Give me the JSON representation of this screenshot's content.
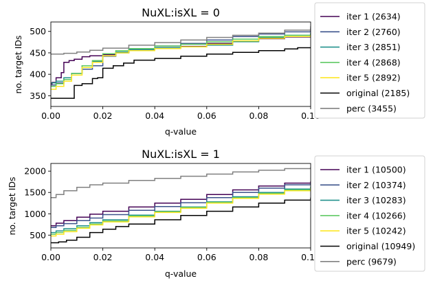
{
  "chart_data": [
    {
      "type": "line",
      "title": "NuXL:isXL = 0",
      "xlabel": "q-value",
      "ylabel": "no. target IDs",
      "xlim": [
        0,
        0.1
      ],
      "ylim": [
        325,
        522
      ],
      "xticks": [
        0,
        0.02,
        0.04,
        0.06,
        0.08,
        0.1
      ],
      "xtick_labels": [
        "0.00",
        "0.02",
        "0.04",
        "0.06",
        "0.08",
        "0.10"
      ],
      "yticks": [
        350,
        400,
        450,
        500
      ],
      "ytick_labels": [
        "350",
        "400",
        "450",
        "500"
      ],
      "legend_position": "right",
      "series": [
        {
          "name": "iter 1 (2634)",
          "color": "#440154",
          "x": [
            0,
            0.0005,
            0.002,
            0.004,
            0.005,
            0.007,
            0.009,
            0.012,
            0.015,
            0.02,
            0.025,
            0.03,
            0.04,
            0.05,
            0.06,
            0.07,
            0.08,
            0.09,
            0.1
          ],
          "y": [
            378,
            381,
            392,
            404,
            428,
            432,
            435,
            441,
            443,
            446,
            451,
            458,
            462,
            465,
            472,
            477,
            483,
            487,
            495
          ]
        },
        {
          "name": "iter 2 (2760)",
          "color": "#3b528b",
          "x": [
            0,
            0.002,
            0.005,
            0.008,
            0.012,
            0.016,
            0.02,
            0.025,
            0.03,
            0.04,
            0.05,
            0.06,
            0.07,
            0.08,
            0.09,
            0.1
          ],
          "y": [
            375,
            380,
            388,
            402,
            412,
            420,
            442,
            450,
            458,
            466,
            472,
            480,
            488,
            494,
            499,
            507
          ]
        },
        {
          "name": "iter 3 (2851)",
          "color": "#21918c",
          "x": [
            0,
            0.002,
            0.005,
            0.008,
            0.012,
            0.016,
            0.02,
            0.025,
            0.03,
            0.04,
            0.05,
            0.06,
            0.07,
            0.08,
            0.09,
            0.1
          ],
          "y": [
            380,
            384,
            392,
            402,
            420,
            430,
            443,
            452,
            458,
            462,
            464,
            468,
            476,
            486,
            491,
            497
          ]
        },
        {
          "name": "iter 4 (2868)",
          "color": "#5ec962",
          "x": [
            0,
            0.002,
            0.005,
            0.008,
            0.012,
            0.016,
            0.02,
            0.025,
            0.03,
            0.04,
            0.05,
            0.06,
            0.07,
            0.08,
            0.09,
            0.1
          ],
          "y": [
            372,
            378,
            388,
            402,
            420,
            432,
            448,
            455,
            460,
            466,
            470,
            476,
            482,
            488,
            491,
            495
          ]
        },
        {
          "name": "iter 5 (2892)",
          "color": "#fde725",
          "x": [
            0,
            0.002,
            0.005,
            0.008,
            0.012,
            0.016,
            0.02,
            0.025,
            0.03,
            0.04,
            0.05,
            0.06,
            0.07,
            0.08,
            0.09,
            0.1
          ],
          "y": [
            365,
            372,
            384,
            398,
            416,
            428,
            443,
            450,
            455,
            460,
            464,
            470,
            478,
            484,
            488,
            492
          ]
        },
        {
          "name": "original (2185)",
          "color": "#000000",
          "x": [
            0,
            0.004,
            0.008,
            0.009,
            0.012,
            0.016,
            0.018,
            0.02,
            0.024,
            0.028,
            0.032,
            0.04,
            0.05,
            0.06,
            0.07,
            0.08,
            0.09,
            0.095,
            0.1
          ],
          "y": [
            344,
            344,
            344,
            374,
            378,
            390,
            392,
            414,
            420,
            426,
            433,
            437,
            442,
            447,
            451,
            455,
            459,
            462,
            463
          ]
        },
        {
          "name": "perc (3455)",
          "color": "#808080",
          "x": [
            0,
            0.005,
            0.01,
            0.015,
            0.02,
            0.03,
            0.04,
            0.05,
            0.06,
            0.07,
            0.08,
            0.09,
            0.1
          ],
          "y": [
            447,
            449,
            452,
            456,
            461,
            468,
            474,
            480,
            486,
            491,
            496,
            503,
            512
          ]
        }
      ]
    },
    {
      "type": "line",
      "title": "NuXL:isXL = 1",
      "xlabel": "q-value",
      "ylabel": "no. target IDs",
      "xlim": [
        0,
        0.1
      ],
      "ylim": [
        200,
        2180
      ],
      "xticks": [
        0,
        0.02,
        0.04,
        0.06,
        0.08,
        0.1
      ],
      "xtick_labels": [
        "0.00",
        "0.02",
        "0.04",
        "0.06",
        "0.08",
        "0.10"
      ],
      "yticks": [
        500,
        1000,
        1500,
        2000
      ],
      "ytick_labels": [
        "500",
        "1000",
        "1500",
        "2000"
      ],
      "legend_position": "right",
      "series": [
        {
          "name": "iter 1 (10500)",
          "color": "#440154",
          "x": [
            0,
            0.002,
            0.005,
            0.01,
            0.015,
            0.02,
            0.03,
            0.04,
            0.05,
            0.06,
            0.07,
            0.08,
            0.09,
            0.1
          ],
          "y": [
            720,
            780,
            840,
            920,
            990,
            1060,
            1160,
            1250,
            1340,
            1450,
            1560,
            1650,
            1720,
            1760
          ]
        },
        {
          "name": "iter 2 (10374)",
          "color": "#3b528b",
          "x": [
            0,
            0.002,
            0.005,
            0.01,
            0.015,
            0.02,
            0.03,
            0.04,
            0.05,
            0.06,
            0.07,
            0.08,
            0.09,
            0.1
          ],
          "y": [
            680,
            720,
            770,
            840,
            900,
            980,
            1080,
            1170,
            1260,
            1380,
            1500,
            1600,
            1680,
            1720
          ]
        },
        {
          "name": "iter 3 (10283)",
          "color": "#21918c",
          "x": [
            0,
            0.002,
            0.005,
            0.01,
            0.015,
            0.02,
            0.03,
            0.04,
            0.05,
            0.06,
            0.07,
            0.08,
            0.09,
            0.1
          ],
          "y": [
            560,
            600,
            650,
            720,
            790,
            860,
            970,
            1060,
            1160,
            1280,
            1400,
            1500,
            1580,
            1640
          ]
        },
        {
          "name": "iter 4 (10266)",
          "color": "#5ec962",
          "x": [
            0,
            0.002,
            0.005,
            0.01,
            0.015,
            0.02,
            0.03,
            0.04,
            0.05,
            0.06,
            0.07,
            0.08,
            0.09,
            0.1
          ],
          "y": [
            520,
            560,
            610,
            680,
            760,
            830,
            950,
            1050,
            1150,
            1270,
            1380,
            1480,
            1560,
            1620
          ]
        },
        {
          "name": "iter 5 (10242)",
          "color": "#fde725",
          "x": [
            0,
            0.002,
            0.005,
            0.01,
            0.015,
            0.02,
            0.03,
            0.04,
            0.05,
            0.06,
            0.07,
            0.08,
            0.09,
            0.1
          ],
          "y": [
            480,
            520,
            580,
            660,
            740,
            810,
            930,
            1030,
            1130,
            1250,
            1360,
            1460,
            1540,
            1600
          ]
        },
        {
          "name": "original (10949)",
          "color": "#000000",
          "x": [
            0,
            0.003,
            0.006,
            0.01,
            0.015,
            0.02,
            0.025,
            0.03,
            0.04,
            0.05,
            0.06,
            0.07,
            0.08,
            0.09,
            0.1
          ],
          "y": [
            320,
            340,
            380,
            450,
            560,
            640,
            700,
            760,
            860,
            960,
            1060,
            1160,
            1250,
            1320,
            1380
          ]
        },
        {
          "name": "perc (9679)",
          "color": "#808080",
          "x": [
            0,
            0.002,
            0.005,
            0.01,
            0.015,
            0.02,
            0.03,
            0.04,
            0.05,
            0.06,
            0.07,
            0.08,
            0.09,
            0.1
          ],
          "y": [
            1380,
            1450,
            1540,
            1620,
            1680,
            1720,
            1780,
            1830,
            1880,
            1930,
            1980,
            2020,
            2060,
            2090
          ]
        }
      ]
    }
  ]
}
